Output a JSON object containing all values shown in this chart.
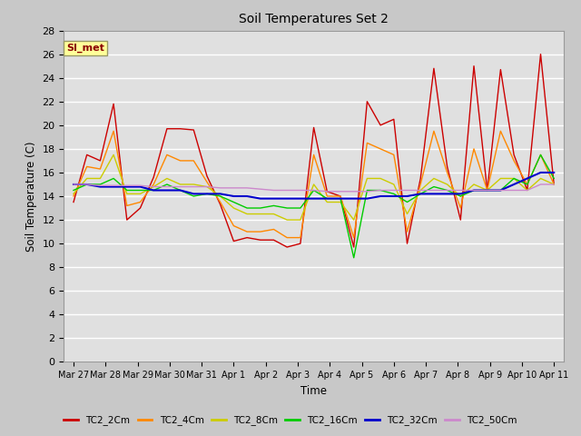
{
  "title": "Soil Temperatures Set 2",
  "xlabel": "Time",
  "ylabel": "Soil Temperature (C)",
  "ylim": [
    0,
    28
  ],
  "yticks": [
    0,
    2,
    4,
    6,
    8,
    10,
    12,
    14,
    16,
    18,
    20,
    22,
    24,
    26,
    28
  ],
  "fig_bg_color": "#c8c8c8",
  "plot_bg_color": "#e0e0e0",
  "annotation_text": "SI_met",
  "annotation_bg": "#ffff99",
  "annotation_fg": "#8b0000",
  "series_colors": {
    "TC2_2Cm": "#cc0000",
    "TC2_4Cm": "#ff8800",
    "TC2_8Cm": "#cccc00",
    "TC2_16Cm": "#00cc00",
    "TC2_32Cm": "#0000cc",
    "TC2_50Cm": "#cc88cc"
  },
  "xtick_labels": [
    "Mar 27",
    "Mar 28",
    "Mar 29",
    "Mar 30",
    "Mar 31",
    "Apr 1",
    "Apr 2",
    "Apr 3",
    "Apr 4",
    "Apr 5",
    "Apr 6",
    "Apr 7",
    "Apr 8",
    "Apr 9",
    "Apr 10",
    "Apr 11"
  ],
  "TC2_2Cm": [
    13.5,
    17.5,
    17.0,
    21.8,
    12.0,
    13.0,
    15.6,
    19.7,
    19.7,
    19.6,
    15.7,
    13.3,
    10.2,
    10.5,
    10.3,
    10.3,
    9.7,
    10.0,
    19.8,
    14.4,
    14.0,
    9.7,
    22.0,
    20.0,
    20.5,
    10.0,
    15.5,
    24.8,
    16.5,
    12.0,
    25.0,
    14.5,
    24.7,
    17.5,
    14.5,
    26.0,
    15.0
  ],
  "TC2_4Cm": [
    14.0,
    16.5,
    16.3,
    19.5,
    13.2,
    13.5,
    15.0,
    17.5,
    17.0,
    17.0,
    15.2,
    13.5,
    11.5,
    11.0,
    11.0,
    11.2,
    10.5,
    10.5,
    17.5,
    14.0,
    14.0,
    10.5,
    18.5,
    18.0,
    17.5,
    11.0,
    15.0,
    19.5,
    16.0,
    13.0,
    18.0,
    14.5,
    19.5,
    17.0,
    15.0,
    17.5,
    15.0
  ],
  "TC2_8Cm": [
    14.2,
    15.5,
    15.5,
    17.5,
    14.2,
    14.2,
    14.8,
    15.5,
    15.0,
    15.0,
    14.8,
    14.0,
    13.0,
    12.5,
    12.5,
    12.5,
    12.0,
    12.0,
    15.0,
    13.5,
    13.5,
    12.0,
    15.5,
    15.5,
    15.0,
    12.5,
    14.5,
    15.5,
    15.0,
    14.0,
    15.0,
    14.5,
    15.5,
    15.5,
    14.5,
    15.5,
    15.0
  ],
  "TC2_16Cm": [
    14.5,
    15.0,
    15.0,
    15.5,
    14.5,
    14.5,
    14.5,
    15.0,
    14.5,
    14.0,
    14.2,
    14.0,
    13.5,
    13.0,
    13.0,
    13.2,
    13.0,
    13.0,
    14.5,
    13.8,
    13.8,
    8.8,
    14.5,
    14.5,
    14.2,
    13.5,
    14.2,
    14.8,
    14.5,
    14.0,
    14.5,
    14.5,
    14.5,
    15.5,
    15.0,
    17.5,
    15.5
  ],
  "TC2_32Cm": [
    15.0,
    15.0,
    14.8,
    14.8,
    14.8,
    14.8,
    14.5,
    14.5,
    14.5,
    14.2,
    14.2,
    14.2,
    14.0,
    14.0,
    13.8,
    13.8,
    13.8,
    13.8,
    13.8,
    13.8,
    13.8,
    13.8,
    13.8,
    14.0,
    14.0,
    14.0,
    14.2,
    14.2,
    14.2,
    14.2,
    14.5,
    14.5,
    14.5,
    15.0,
    15.5,
    16.0,
    16.0
  ],
  "TC2_50Cm": [
    15.0,
    15.0,
    14.9,
    14.9,
    14.9,
    14.9,
    14.8,
    14.8,
    14.8,
    14.8,
    14.8,
    14.7,
    14.7,
    14.7,
    14.6,
    14.5,
    14.5,
    14.5,
    14.5,
    14.4,
    14.4,
    14.4,
    14.4,
    14.5,
    14.5,
    14.5,
    14.5,
    14.5,
    14.5,
    14.5,
    14.5,
    14.5,
    14.5,
    14.5,
    14.5,
    15.0,
    15.0
  ]
}
